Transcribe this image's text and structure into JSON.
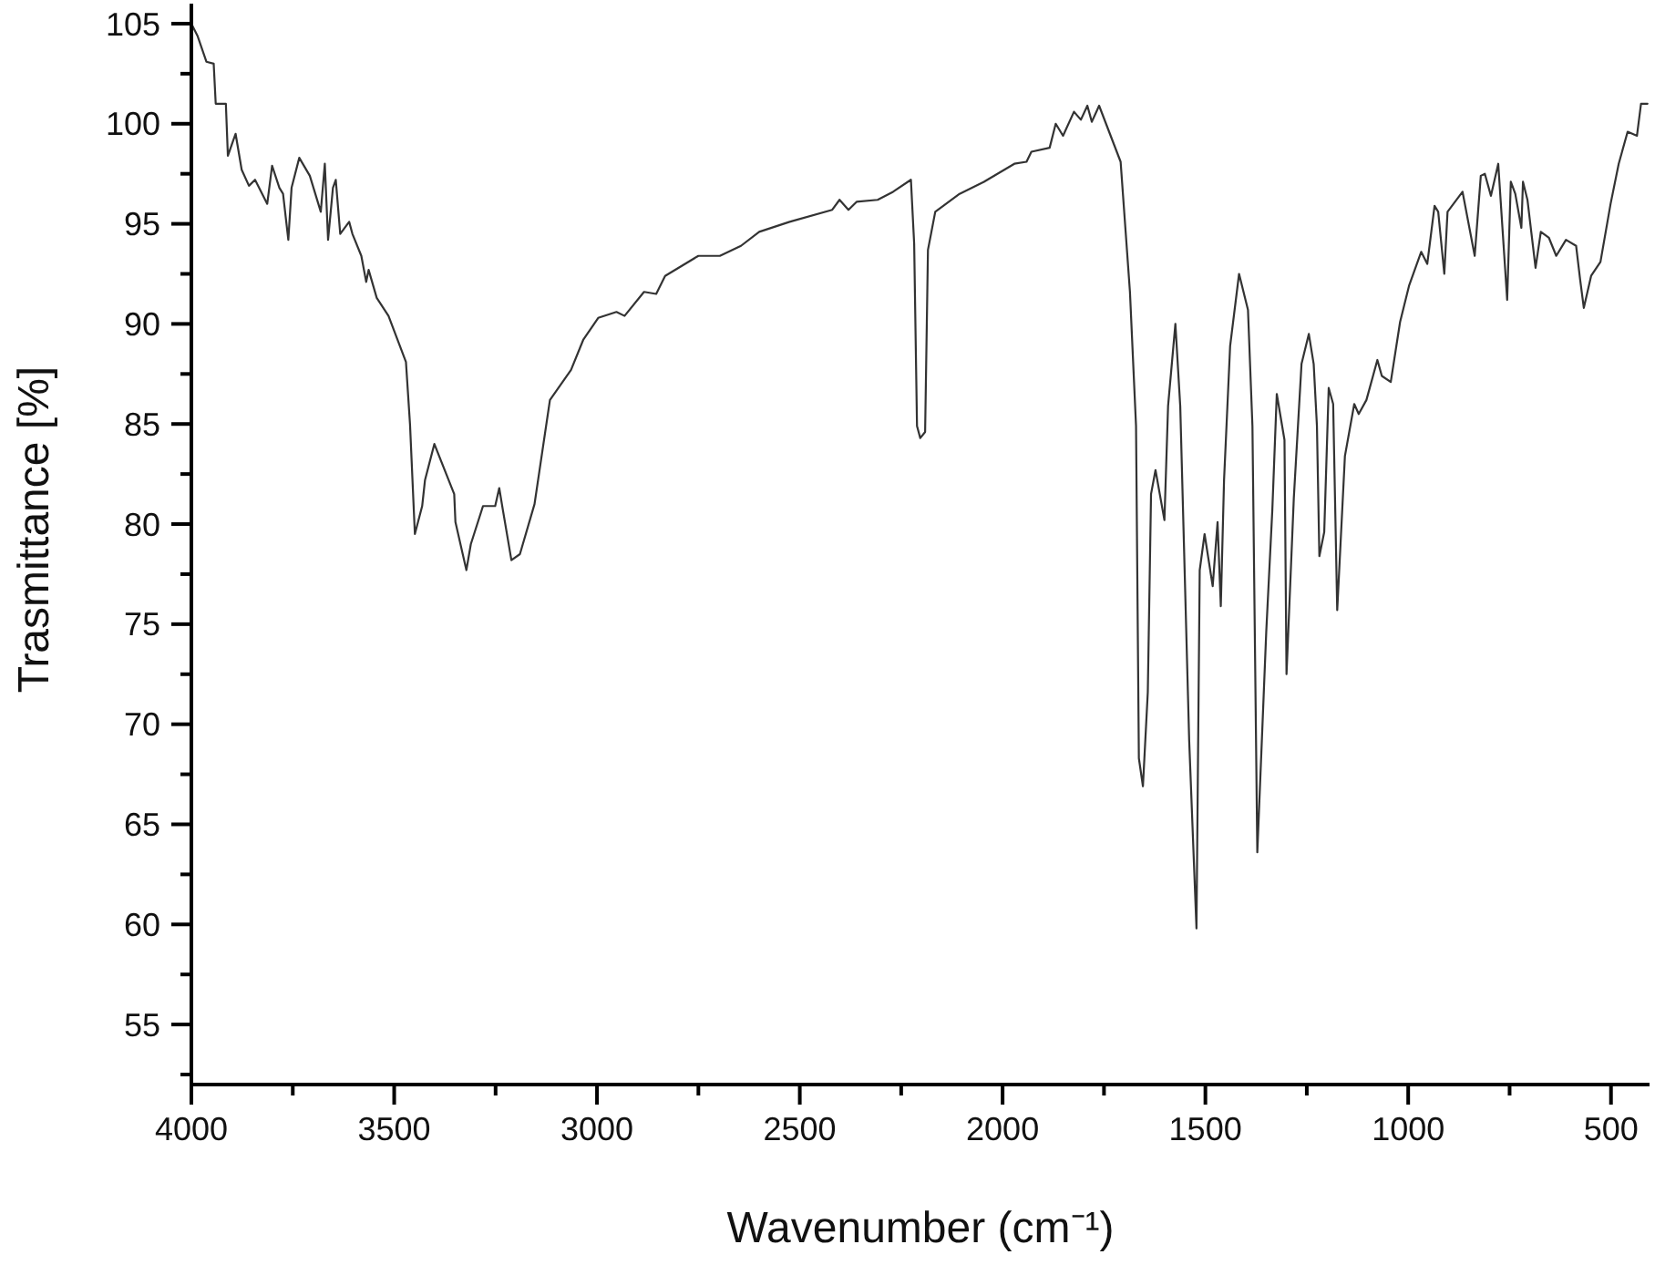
{
  "chart_data": {
    "type": "line",
    "xlabel": "Wavenumber (cm⁻¹)",
    "ylabel": "Trasmittance [%]",
    "color": "#333333",
    "xlim": [
      4000,
      405
    ],
    "ylim": [
      52,
      106
    ],
    "xticks": [
      4000,
      {
        "value": 3750,
        "label": null
      },
      3500,
      {
        "value": 3250,
        "label": null
      },
      3000,
      {
        "value": 2750,
        "label": null
      },
      2500,
      {
        "value": 2250,
        "label": null
      },
      2000,
      {
        "value": 1750,
        "label": null
      },
      1500,
      {
        "value": 1250,
        "label": null
      },
      1000,
      {
        "value": 750,
        "label": null
      },
      500
    ],
    "yticks": [
      {
        "value": 52.5,
        "label": null
      },
      55,
      {
        "value": 57.5,
        "label": null
      },
      60,
      {
        "value": 62.5,
        "label": null
      },
      65,
      {
        "value": 67.5,
        "label": null
      },
      70,
      {
        "value": 72.5,
        "label": null
      },
      75,
      {
        "value": 77.5,
        "label": null
      },
      80,
      {
        "value": 82.5,
        "label": null
      },
      85,
      {
        "value": 87.5,
        "label": null
      },
      90,
      {
        "value": 92.5,
        "label": null
      },
      95,
      {
        "value": 97.5,
        "label": null
      },
      100,
      {
        "value": 102.5,
        "label": null
      },
      105
    ],
    "x": [
      4000,
      3985,
      3963,
      3945,
      3940,
      3915,
      3910,
      3891,
      3876,
      3858,
      3843,
      3813,
      3801,
      3783,
      3774,
      3761,
      3753,
      3734,
      3708,
      3681,
      3671,
      3663,
      3651,
      3644,
      3633,
      3611,
      3603,
      3581,
      3569,
      3563,
      3543,
      3514,
      3471,
      3461,
      3449,
      3431,
      3424,
      3401,
      3352,
      3349,
      3322,
      3311,
      3281,
      3251,
      3241,
      3232,
      3211,
      3190,
      3154,
      3116,
      3064,
      3034,
      2997,
      2952,
      2932,
      2884,
      2854,
      2832,
      2750,
      2697,
      2645,
      2600,
      2525,
      2420,
      2402,
      2380,
      2360,
      2308,
      2270,
      2226,
      2218,
      2211,
      2203,
      2191,
      2184,
      2166,
      2106,
      2046,
      1971,
      1941,
      1929,
      1884,
      1869,
      1851,
      1824,
      1807,
      1791,
      1780,
      1762,
      1709,
      1686,
      1671,
      1664,
      1654,
      1642,
      1634,
      1623,
      1601,
      1592,
      1574,
      1562,
      1540,
      1522,
      1514,
      1502,
      1482,
      1470,
      1462,
      1454,
      1439,
      1417,
      1395,
      1384,
      1372,
      1350,
      1335,
      1324,
      1305,
      1300,
      1282,
      1263,
      1245,
      1233,
      1225,
      1219,
      1207,
      1196,
      1185,
      1175,
      1156,
      1133,
      1122,
      1103,
      1076,
      1065,
      1043,
      1020,
      998,
      968,
      953,
      935,
      926,
      911,
      903,
      866,
      836,
      821,
      811,
      796,
      778,
      756,
      747,
      736,
      721,
      717,
      706,
      686,
      673,
      653,
      635,
      611,
      586,
      576,
      567,
      549,
      526,
      501,
      481,
      459,
      436,
      426,
      410
    ],
    "values": [
      105.0,
      104.4,
      103.1,
      103.0,
      101.0,
      101.0,
      98.4,
      99.5,
      97.7,
      96.9,
      97.2,
      96.0,
      97.9,
      96.8,
      96.5,
      94.2,
      96.8,
      98.3,
      97.4,
      95.6,
      98.0,
      94.2,
      96.8,
      97.2,
      94.5,
      95.1,
      94.5,
      93.4,
      92.1,
      92.7,
      91.3,
      90.4,
      88.1,
      85.0,
      79.5,
      80.9,
      82.2,
      84.0,
      81.5,
      80.1,
      77.7,
      79.0,
      80.9,
      80.9,
      81.8,
      80.7,
      78.2,
      78.5,
      81.0,
      86.2,
      87.7,
      89.2,
      90.3,
      90.6,
      90.4,
      91.6,
      91.5,
      92.4,
      93.4,
      93.4,
      93.9,
      94.6,
      95.1,
      95.7,
      96.2,
      95.7,
      96.1,
      96.2,
      96.6,
      97.2,
      94.0,
      84.9,
      84.3,
      84.6,
      93.7,
      95.6,
      96.5,
      97.1,
      98.0,
      98.1,
      98.6,
      98.8,
      100.0,
      99.4,
      100.6,
      100.2,
      100.9,
      100.1,
      100.9,
      98.1,
      91.6,
      84.9,
      68.3,
      66.9,
      71.6,
      81.5,
      82.7,
      80.2,
      85.9,
      90.0,
      85.9,
      69.2,
      59.8,
      77.7,
      79.5,
      76.9,
      80.1,
      75.9,
      82.2,
      88.9,
      92.5,
      90.7,
      84.9,
      63.6,
      74.6,
      80.7,
      86.5,
      84.2,
      72.5,
      81.3,
      88.0,
      89.5,
      88.0,
      84.9,
      78.4,
      79.6,
      86.8,
      86.0,
      75.7,
      83.4,
      86.0,
      85.5,
      86.2,
      88.2,
      87.4,
      87.1,
      90.1,
      91.9,
      93.6,
      93.0,
      95.9,
      95.6,
      92.5,
      95.6,
      96.6,
      93.4,
      97.4,
      97.5,
      96.4,
      98.0,
      91.2,
      97.1,
      96.5,
      94.8,
      97.1,
      96.2,
      92.8,
      94.6,
      94.3,
      93.4,
      94.2,
      93.9,
      92.2,
      90.8,
      92.4,
      93.1,
      96.0,
      98.0,
      99.6,
      99.4,
      101.0,
      101.0
    ]
  }
}
